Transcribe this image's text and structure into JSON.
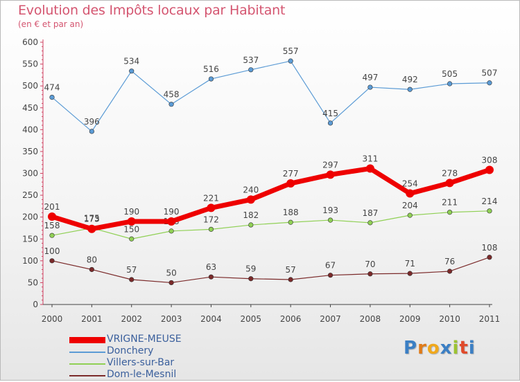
{
  "header": {
    "title": "Evolution des Impôts locaux par Habitant",
    "subtitle": "(en € et par an)"
  },
  "logo": {
    "letters": [
      "P",
      "r",
      "o",
      "x",
      "i",
      "t",
      "i"
    ],
    "colors": [
      "#3b7fc4",
      "#e07b18",
      "#f0a81c",
      "#3b7fc4",
      "#9cc332",
      "#e04a2a",
      "#3b7fc4"
    ]
  },
  "chart_data": {
    "type": "line",
    "x": [
      "2000",
      "2001",
      "2002",
      "2003",
      "2004",
      "2005",
      "2006",
      "2007",
      "2008",
      "2009",
      "2010",
      "2011"
    ],
    "ylim": [
      0,
      600
    ],
    "yticks": [
      "0",
      "50",
      "100",
      "150",
      "200",
      "250",
      "300",
      "350",
      "400",
      "450",
      "500",
      "550",
      "600"
    ],
    "grid": false,
    "legend_position": "bottom-left",
    "series": [
      {
        "name": "Donchery",
        "color": "#5b9bd5",
        "values": [
          474,
          396,
          534,
          458,
          516,
          537,
          557,
          415,
          497,
          492,
          505,
          507
        ],
        "labels": [
          "474",
          "396",
          "534",
          "458",
          "516",
          "537",
          "557",
          "415",
          "497",
          "492",
          "505",
          "507"
        ]
      },
      {
        "name": "Villers-sur-Bar",
        "color": "#90d055",
        "values": [
          158,
          175,
          150,
          168,
          172,
          182,
          188,
          193,
          187,
          204,
          211,
          214
        ],
        "labels": [
          "158",
          "175",
          "150",
          "168",
          "172",
          "182",
          "188",
          "193",
          "187",
          "204",
          "211",
          "214"
        ]
      },
      {
        "name": "Dom-le-Mesnil",
        "color": "#7b2a2a",
        "values": [
          100,
          80,
          57,
          50,
          63,
          59,
          57,
          67,
          70,
          71,
          76,
          108
        ],
        "labels": [
          "100",
          "80",
          "57",
          "50",
          "63",
          "59",
          "57",
          "67",
          "70",
          "71",
          "76",
          "108"
        ]
      },
      {
        "name": "VRIGNE-MEUSE",
        "color": "#ee0000",
        "values": [
          201,
          173,
          190,
          190,
          221,
          240,
          277,
          297,
          311,
          254,
          278,
          308
        ],
        "labels": [
          "201",
          "173",
          "190",
          "190",
          "221",
          "240",
          "277",
          "297",
          "311",
          "254",
          "278",
          "308"
        ]
      }
    ]
  },
  "legend": {
    "items": [
      {
        "label": "VRIGNE-MEUSE",
        "color": "#ee0000",
        "thickness": "thick"
      },
      {
        "label": "Donchery",
        "color": "#5b9bd5",
        "thickness": "thin"
      },
      {
        "label": "Villers-sur-Bar",
        "color": "#90d055",
        "thickness": "thin"
      },
      {
        "label": "Dom-le-Mesnil",
        "color": "#7b2a2a",
        "thickness": "thin"
      }
    ]
  }
}
